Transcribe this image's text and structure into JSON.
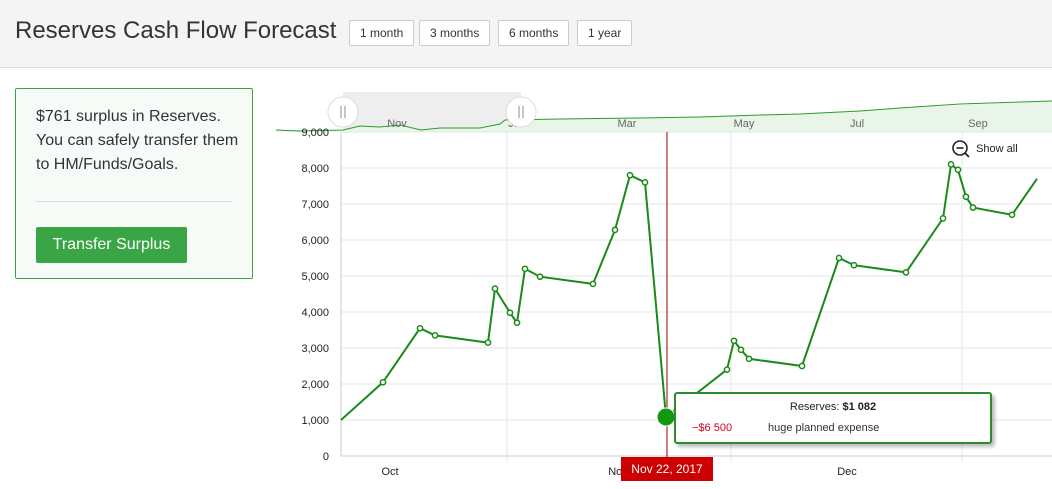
{
  "header": {
    "title": "Reserves Cash Flow Forecast",
    "ranges": [
      "1 month",
      "3 months",
      "6 months",
      "1 year"
    ]
  },
  "card": {
    "message": "$761 surplus in Reserves. You can safely transfer them to HM/Funds/Goals.",
    "button_label": "Transfer Surplus"
  },
  "navigator": {
    "labels": [
      "Nov",
      "Jan",
      "Mar",
      "May",
      "Jul",
      "Sep"
    ]
  },
  "zoom": {
    "show_all_label": "Show all"
  },
  "tooltip": {
    "prefix": "Reserves:",
    "value": "$1 082",
    "amount": "−$6 500",
    "description": "huge planned expense"
  },
  "crosshair": {
    "date_label": "Nov 22, 2017"
  },
  "colors": {
    "series": "#1a8a1a",
    "accent": "#3aa544",
    "crosshair": "#cc0000",
    "expense": "#d0021b"
  },
  "chart_data": {
    "type": "line",
    "x_labels": [
      "Oct",
      "Nov",
      "Dec"
    ],
    "ylim": [
      0,
      9000
    ],
    "yticks": [
      0,
      1000,
      2000,
      3000,
      4000,
      5000,
      6000,
      7000,
      8000,
      9000
    ],
    "grid": true,
    "series": [
      {
        "values": [
          1000,
          2050,
          3550,
          3350,
          3150,
          4650,
          3980,
          3700,
          5200,
          4980,
          4780,
          6280,
          7800,
          7600,
          1082,
          2400,
          3200,
          2950,
          2700,
          2500,
          5500,
          5300,
          5100,
          6600,
          8100,
          7950,
          7200,
          6900,
          6700,
          7700
        ]
      }
    ]
  }
}
